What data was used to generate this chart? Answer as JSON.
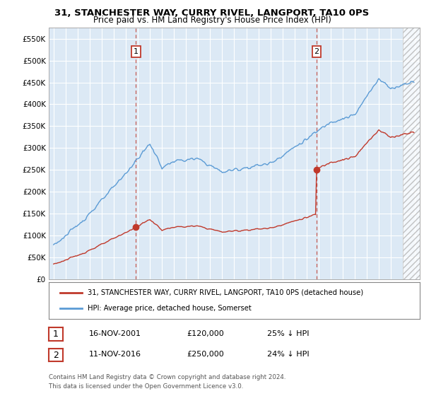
{
  "title": "31, STANCHESTER WAY, CURRY RIVEL, LANGPORT, TA10 0PS",
  "subtitle": "Price paid vs. HM Land Registry's House Price Index (HPI)",
  "ylim": [
    0,
    575000
  ],
  "yticks": [
    0,
    50000,
    100000,
    150000,
    200000,
    250000,
    300000,
    350000,
    400000,
    450000,
    500000,
    550000
  ],
  "hpi_color": "#5b9bd5",
  "property_color": "#c0392b",
  "vline_color": "#c0392b",
  "marker1_date": "16-NOV-2001",
  "marker1_price": 120000,
  "marker1_hpi_pct": "25% ↓ HPI",
  "marker2_date": "11-NOV-2016",
  "marker2_price": 250000,
  "marker2_hpi_pct": "24% ↓ HPI",
  "legend_property": "31, STANCHESTER WAY, CURRY RIVEL, LANGPORT, TA10 0PS (detached house)",
  "legend_hpi": "HPI: Average price, detached house, Somerset",
  "footnote1": "Contains HM Land Registry data © Crown copyright and database right 2024.",
  "footnote2": "This data is licensed under the Open Government Licence v3.0.",
  "background_color": "#ffffff",
  "plot_bg_color": "#dce9f5",
  "grid_color": "#ffffff",
  "hatch_color": "#cccccc",
  "xlim_start": 1995,
  "xlim_end": 2025,
  "hatch_start": 2024.0
}
